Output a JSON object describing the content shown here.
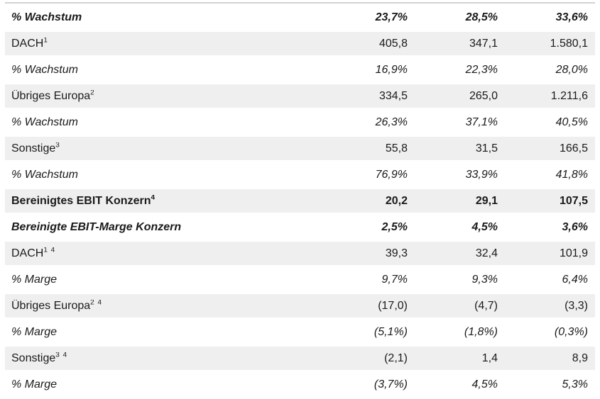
{
  "table": {
    "columns": 3,
    "shaded_row_color": "#efefef",
    "text_color": "#1a1a1a",
    "top_rule_color": "#d2d2d2",
    "rows": [
      {
        "label": "% Wachstum",
        "sup": "",
        "values": [
          "23,7%",
          "28,5%",
          "33,6%"
        ],
        "style": "bold-italic",
        "shaded": false
      },
      {
        "label": "DACH",
        "sup": "1",
        "values": [
          "405,8",
          "347,1",
          "1.580,1"
        ],
        "style": "normal",
        "shaded": true
      },
      {
        "label": "% Wachstum",
        "sup": "",
        "values": [
          "16,9%",
          "22,3%",
          "28,0%"
        ],
        "style": "italic",
        "shaded": false
      },
      {
        "label": "Übriges Europa",
        "sup": "2",
        "values": [
          "334,5",
          "265,0",
          "1.211,6"
        ],
        "style": "normal",
        "shaded": true
      },
      {
        "label": "% Wachstum",
        "sup": "",
        "values": [
          "26,3%",
          "37,1%",
          "40,5%"
        ],
        "style": "italic",
        "shaded": false
      },
      {
        "label": "Sonstige",
        "sup": "3",
        "values": [
          "55,8",
          "31,5",
          "166,5"
        ],
        "style": "normal",
        "shaded": true
      },
      {
        "label": "% Wachstum",
        "sup": "",
        "values": [
          "76,9%",
          "33,9%",
          "41,8%"
        ],
        "style": "italic",
        "shaded": false
      },
      {
        "label": "Bereinigtes EBIT Konzern",
        "sup": "4",
        "values": [
          "20,2",
          "29,1",
          "107,5"
        ],
        "style": "bold",
        "shaded": true
      },
      {
        "label": "Bereinigte EBIT-Marge Konzern",
        "sup": "",
        "values": [
          "2,5%",
          "4,5%",
          "3,6%"
        ],
        "style": "bold-italic",
        "shaded": false
      },
      {
        "label": "DACH",
        "sup": "1 4",
        "values": [
          "39,3",
          "32,4",
          "101,9"
        ],
        "style": "normal",
        "shaded": true
      },
      {
        "label": "% Marge",
        "sup": "",
        "values": [
          "9,7%",
          "9,3%",
          "6,4%"
        ],
        "style": "italic",
        "shaded": false
      },
      {
        "label": "Übriges Europa",
        "sup": "2 4",
        "values": [
          "(17,0)",
          "(4,7)",
          "(3,3)"
        ],
        "style": "normal",
        "shaded": true
      },
      {
        "label": "% Marge",
        "sup": "",
        "values": [
          "(5,1%)",
          "(1,8%)",
          "(0,3%)"
        ],
        "style": "italic",
        "shaded": false
      },
      {
        "label": "Sonstige",
        "sup": "3 4",
        "values": [
          "(2,1)",
          "1,4",
          "8,9"
        ],
        "style": "normal",
        "shaded": true
      },
      {
        "label": "% Marge",
        "sup": "",
        "values": [
          "(3,7%)",
          "4,5%",
          "5,3%"
        ],
        "style": "italic",
        "shaded": false
      }
    ]
  }
}
